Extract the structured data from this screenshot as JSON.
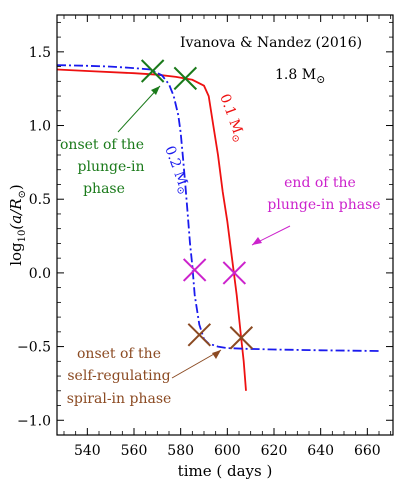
{
  "chart_data": {
    "type": "line",
    "title": "Ivanova & Nandez (2016)",
    "mass_label": "1.8 M",
    "mass_label_symbol": "⊙",
    "xlabel": "time ( days )",
    "ylabel_prefix": "log",
    "ylabel_sub": "10",
    "ylabel_arg": "(a/R",
    "ylabel_arg_symbol": "⊙",
    "ylabel_close": ")",
    "xlim": [
      527,
      671
    ],
    "ylim": [
      -1.1,
      1.75
    ],
    "xticks": [
      540,
      560,
      580,
      600,
      620,
      640,
      660
    ],
    "yticks": [
      -1.0,
      -0.5,
      0.0,
      0.5,
      1.0,
      1.5
    ],
    "xtick_labels": [
      "540",
      "560",
      "580",
      "600",
      "620",
      "640",
      "660"
    ],
    "ytick_labels": [
      "−1.0",
      "−0.5",
      "0.0",
      "0.5",
      "1.0",
      "1.5"
    ],
    "series": [
      {
        "name": "0.1 M",
        "name_symbol": "⊙",
        "color": "#ee1111",
        "style": "solid",
        "x": [
          527,
          540,
          560,
          570,
          578,
          585,
          590,
          592,
          594,
          596,
          598,
          600,
          602,
          604,
          606,
          607,
          608
        ],
        "y": [
          1.38,
          1.37,
          1.355,
          1.345,
          1.33,
          1.31,
          1.27,
          1.2,
          1.0,
          0.8,
          0.55,
          0.35,
          0.1,
          -0.15,
          -0.45,
          -0.6,
          -0.8
        ]
      },
      {
        "name": "0.2 M",
        "name_symbol": "⊙",
        "color": "#1a1aee",
        "style": "dashdot",
        "x": [
          527,
          540,
          550,
          560,
          567,
          572,
          575,
          577,
          579,
          580,
          581,
          582,
          583,
          584,
          585,
          586,
          588,
          590,
          592,
          596,
          600,
          608,
          620,
          640,
          665
        ],
        "y": [
          1.41,
          1.405,
          1.4,
          1.39,
          1.38,
          1.34,
          1.28,
          1.2,
          1.07,
          0.95,
          0.78,
          0.6,
          0.4,
          0.2,
          0.05,
          -0.15,
          -0.35,
          -0.45,
          -0.48,
          -0.5,
          -0.51,
          -0.515,
          -0.52,
          -0.525,
          -0.53
        ]
      }
    ],
    "markers": [
      {
        "x": 568,
        "y": 1.37,
        "color": "#1a7a1a",
        "group": "plunge-onset"
      },
      {
        "x": 582,
        "y": 1.32,
        "color": "#1a7a1a",
        "group": "plunge-onset"
      },
      {
        "x": 586,
        "y": 0.02,
        "color": "#cc22cc",
        "group": "plunge-end"
      },
      {
        "x": 603,
        "y": 0.0,
        "color": "#cc22cc",
        "group": "plunge-end"
      },
      {
        "x": 588,
        "y": -0.42,
        "color": "#8b4a22",
        "group": "self-regulating"
      },
      {
        "x": 606,
        "y": -0.44,
        "color": "#8b4a22",
        "group": "self-regulating"
      }
    ],
    "annotations": [
      {
        "lines": [
          "onset of the",
          "plunge-in",
          "phase"
        ],
        "color": "#1a7a1a",
        "group": "plunge-onset"
      },
      {
        "lines": [
          "end of the",
          "plunge-in phase"
        ],
        "color": "#cc22cc",
        "group": "plunge-end"
      },
      {
        "lines": [
          "onset of the",
          "self-regulating",
          "spiral-in phase"
        ],
        "color": "#8b4a22",
        "group": "self-regulating"
      }
    ]
  }
}
